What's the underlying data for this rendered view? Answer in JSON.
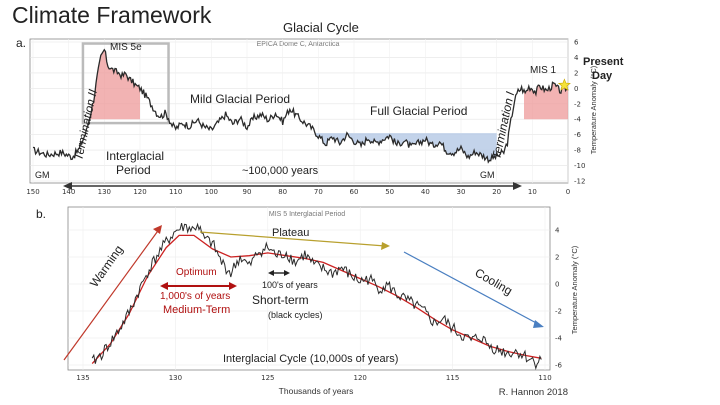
{
  "slide_title": "Climate Framework",
  "credit": "R. Hannon 2018",
  "colors": {
    "warm_fill": "#ee9999",
    "cold_fill": "#b9cbe6",
    "curve": "#2b2b2b",
    "fit": "#cc2222",
    "warming_arrow": "#c0392b",
    "plateau_arrow": "#b8a02e",
    "cooling_arrow": "#4a7fc1",
    "highlight_box": "#bbbbbb",
    "star": "#f5e23a"
  },
  "chart_data": [
    {
      "type": "area",
      "panel_label": "a.",
      "title": "Glacial Cycle",
      "subtitle": "EPICA Dome C, Antarctica",
      "ylabel": "Temperature Anomaly (°C)",
      "xlim": [
        150,
        0
      ],
      "ylim": [
        -12,
        6
      ],
      "x_ticks": [
        150,
        140,
        130,
        120,
        110,
        100,
        90,
        80,
        70,
        60,
        50,
        40,
        30,
        20,
        10,
        0
      ],
      "y_ticks": [
        6,
        4,
        2,
        0,
        -2,
        -4,
        -6,
        -8,
        -10,
        -12
      ],
      "series": [
        {
          "x": [
            150,
            146,
            142,
            139,
            137,
            135,
            134,
            133,
            132,
            131,
            130,
            129,
            128,
            127,
            126,
            125,
            124,
            123,
            122,
            121,
            120,
            119,
            118,
            117,
            116,
            115,
            114,
            113,
            112,
            111,
            110,
            108,
            106,
            104,
            102,
            100,
            98,
            96,
            94,
            92,
            90,
            88,
            86,
            84,
            82,
            80,
            78,
            76,
            74,
            72,
            70,
            68,
            66,
            64,
            62,
            60,
            58,
            56,
            54,
            52,
            50,
            48,
            46,
            44,
            42,
            40,
            38,
            36,
            34,
            32,
            30,
            28,
            26,
            24,
            22,
            20,
            18,
            17,
            16,
            15,
            14,
            13,
            12,
            11,
            10,
            9,
            8,
            7,
            6,
            5,
            4,
            3,
            2,
            1,
            0
          ],
          "values": [
            -8,
            -8.6,
            -8.3,
            -8.9,
            -7.8,
            -5.5,
            -3.5,
            -1.5,
            1.5,
            4.0,
            5.0,
            3.0,
            2.5,
            2.2,
            2.0,
            1.6,
            1.9,
            1.2,
            0.8,
            0.3,
            0.0,
            -0.6,
            -1.2,
            -2.0,
            -2.7,
            -3.4,
            -3.6,
            -3.2,
            -3.8,
            -4.8,
            -5.2,
            -4.5,
            -4.9,
            -4.1,
            -5.0,
            -5.4,
            -4.4,
            -3.4,
            -4.6,
            -3.9,
            -5.0,
            -3.8,
            -3.4,
            -4.1,
            -3.2,
            -4.3,
            -2.6,
            -3.6,
            -4.4,
            -5.1,
            -6.1,
            -7.2,
            -6.3,
            -7.1,
            -6.0,
            -6.8,
            -7.4,
            -6.4,
            -7.1,
            -6.6,
            -6.1,
            -7.3,
            -6.8,
            -7.6,
            -7.1,
            -6.6,
            -7.4,
            -6.9,
            -8.1,
            -8.3,
            -7.8,
            -8.9,
            -8.2,
            -8.7,
            -9.2,
            -8.8,
            -8.3,
            -7.0,
            -4.2,
            -1.6,
            -0.4,
            0.0,
            -0.6,
            0.2,
            0.0,
            -0.5,
            0.3,
            0.0,
            -0.3,
            0.1,
            0.5,
            0.0,
            -0.4,
            0.1,
            -0.2
          ]
        }
      ],
      "annotations": [
        "MIS 5e",
        "Termination II",
        "Interglacial Period",
        "GM",
        "Mild Glacial Period",
        "Full Glacial Period",
        "Termination I",
        "~100,000 years",
        "MIS 1",
        "Present Day"
      ]
    },
    {
      "type": "line",
      "panel_label": "b.",
      "title": "MIS 5 Interglacial Period",
      "xlabel": "Thousands of years",
      "ylabel": "Temperature Anomaly (°C)",
      "xlim": [
        135,
        110
      ],
      "ylim": [
        -6,
        5
      ],
      "x_ticks": [
        135,
        130,
        125,
        120,
        115,
        110
      ],
      "y_ticks": [
        4,
        2,
        0,
        -2,
        -4,
        -6
      ],
      "series": [
        {
          "x": [
            134.5,
            134.0,
            133.5,
            133.0,
            132.5,
            132.0,
            131.5,
            131.0,
            130.5,
            130.0,
            129.5,
            129.0,
            128.8,
            128.5,
            128.0,
            127.5,
            127.0,
            126.5,
            126.0,
            125.5,
            125.0,
            124.5,
            124.0,
            123.5,
            123.0,
            122.5,
            122.0,
            121.5,
            121.0,
            120.5,
            120.0,
            119.5,
            119.0,
            118.5,
            118.0,
            117.5,
            117.0,
            116.5,
            116.0,
            115.5,
            115.0,
            114.5,
            114.0,
            113.5,
            113.0,
            112.5,
            112.0,
            111.5,
            111.0,
            110.5,
            110.2
          ],
          "values": [
            -5.8,
            -5.2,
            -4.3,
            -3.3,
            -2.1,
            -0.6,
            0.9,
            2.1,
            3.1,
            3.9,
            4.3,
            4.0,
            4.5,
            3.4,
            3.0,
            1.6,
            0.8,
            2.0,
            1.3,
            2.4,
            2.7,
            2.1,
            2.3,
            1.6,
            2.2,
            1.4,
            1.1,
            0.8,
            1.2,
            0.6,
            0.2,
            0.4,
            -0.3,
            -0.1,
            -0.8,
            -1.2,
            -1.6,
            -2.1,
            -2.9,
            -2.6,
            -3.3,
            -3.8,
            -4.2,
            -3.9,
            -4.6,
            -4.9,
            -5.1,
            -5.0,
            -5.4,
            -5.8,
            -5.6
          ]
        },
        {
          "x": [
            134.5,
            133.5,
            132.5,
            131.5,
            130.5,
            129.8,
            129.0,
            128.0,
            127.0,
            126.0,
            125.0,
            124.0,
            123.0,
            122.0,
            121.0,
            120.0,
            119.0,
            118.0,
            117.0,
            116.0,
            115.0,
            114.0,
            113.0,
            112.0,
            111.0,
            110.2
          ],
          "values": [
            -5.9,
            -4.4,
            -2.2,
            0.6,
            2.7,
            3.6,
            3.6,
            2.6,
            2.0,
            2.1,
            2.3,
            2.1,
            1.9,
            1.6,
            1.0,
            0.4,
            -0.2,
            -0.9,
            -1.7,
            -2.6,
            -3.4,
            -4.0,
            -4.6,
            -5.0,
            -5.3,
            -5.5
          ]
        }
      ],
      "annotations": [
        "Warming",
        "Plateau",
        "Cooling",
        "Optimum",
        "1,000's of years",
        "Medium-Term",
        "100's of years",
        "Short-term",
        "(black cycles)",
        "Interglacial Cycle (10,000s of years)"
      ]
    }
  ]
}
